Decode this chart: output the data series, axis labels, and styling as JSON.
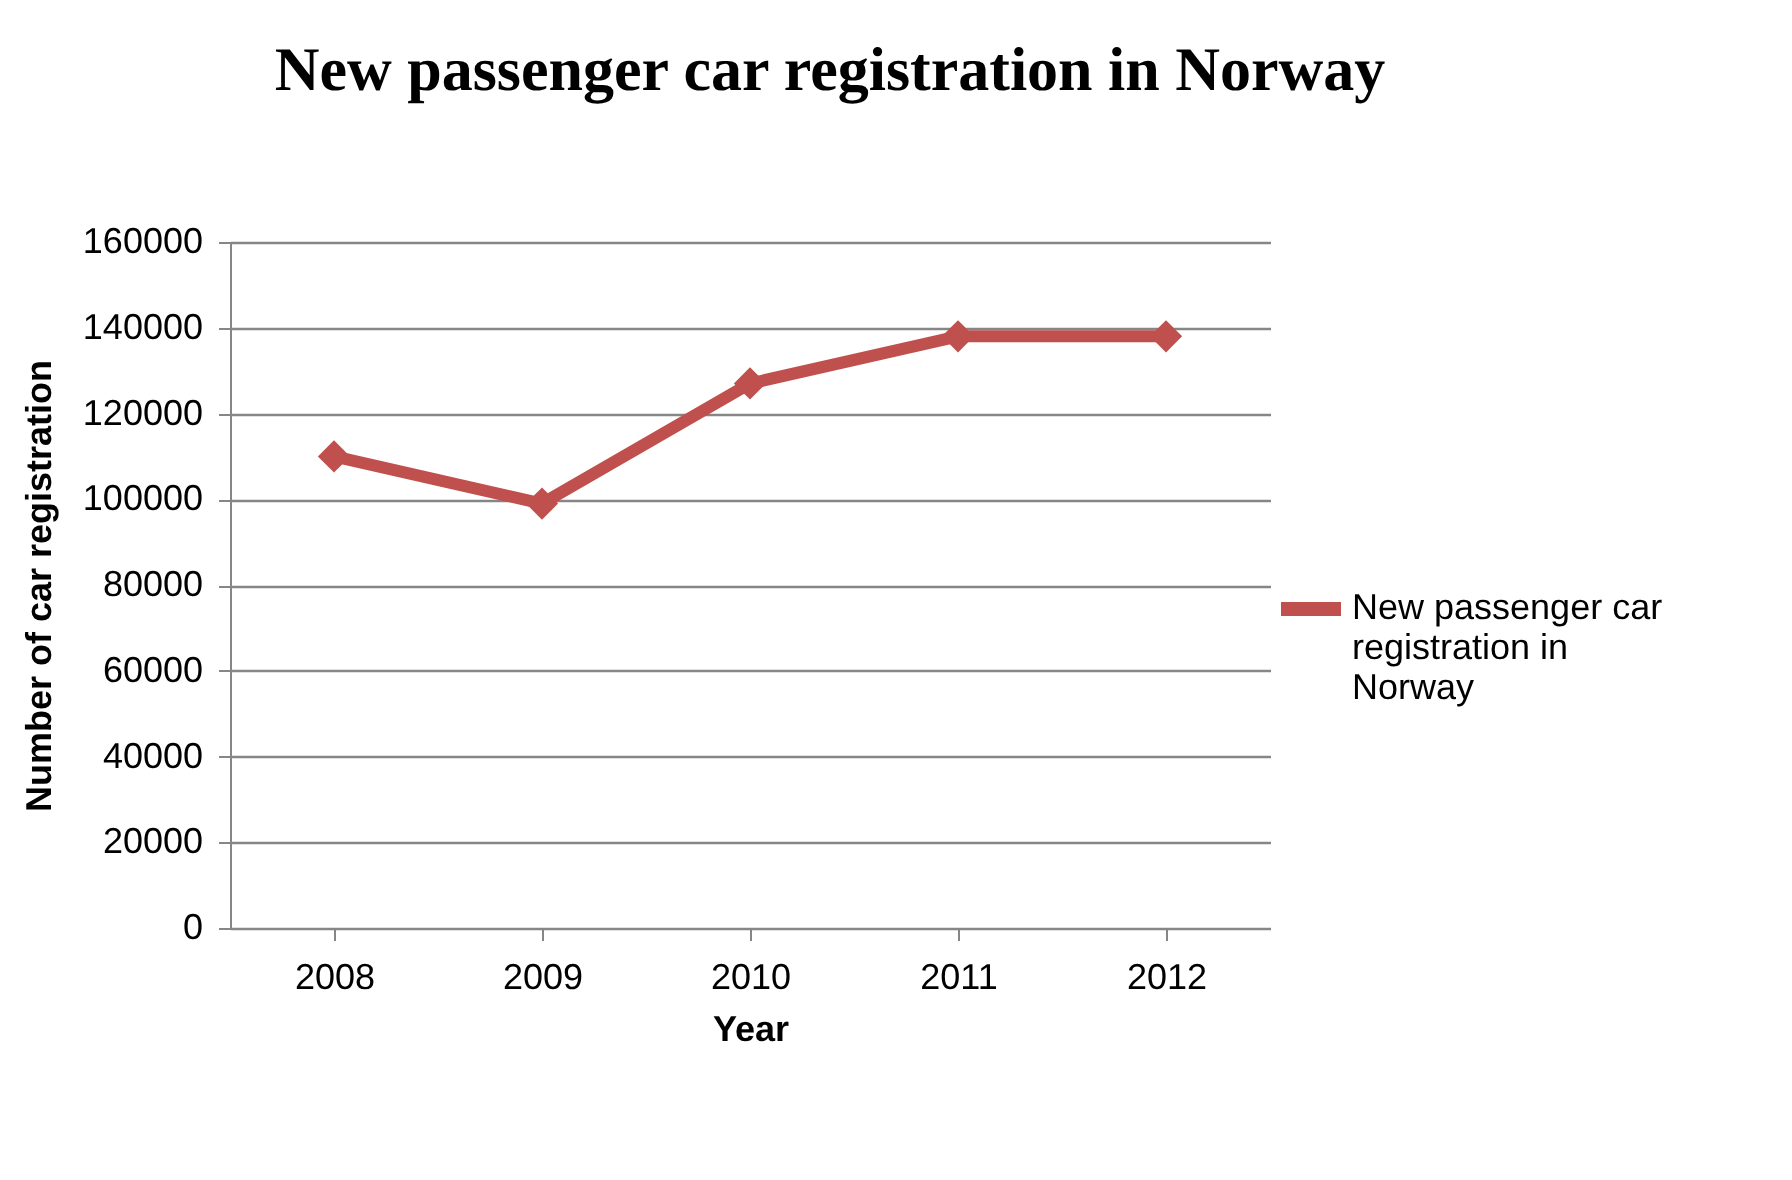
{
  "chart_data": {
    "type": "line",
    "title": "New passenger car registration in Norway",
    "xlabel": "Year",
    "ylabel": "Number of car registration",
    "categories": [
      "2008",
      "2009",
      "2010",
      "2011",
      "2012"
    ],
    "series": [
      {
        "name": "New passenger car registration in Norway",
        "color": "#c0504d",
        "values": [
          110000,
          99000,
          127000,
          138000,
          138000
        ]
      }
    ],
    "ylim": [
      0,
      160000
    ],
    "yticks": [
      0,
      20000,
      40000,
      60000,
      80000,
      100000,
      120000,
      140000,
      160000
    ],
    "grid": "y",
    "legend": "right",
    "marker": "diamond",
    "line_style": "solid"
  }
}
